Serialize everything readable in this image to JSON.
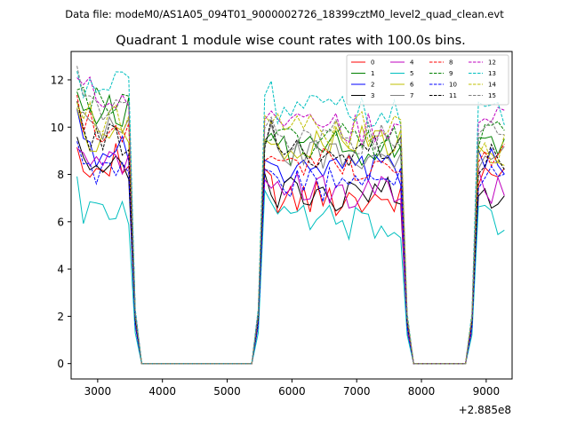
{
  "figure": {
    "suptitle": "Data file: modeM0/AS1A05_094T01_9000002726_18399cztM0_level2_quad_clean.evt"
  },
  "chart_data": {
    "type": "line",
    "title": "Quadrant 1 module wise count rates with 100.0s bins.",
    "xlabel": "",
    "ylabel": "",
    "x_offset_label": "+2.885e8",
    "xlim": [
      2590,
      9400
    ],
    "ylim": [
      -0.65,
      13.2
    ],
    "x_ticks": [
      3000,
      4000,
      5000,
      6000,
      7000,
      8000,
      9000
    ],
    "x_tick_labels": [
      "3000",
      "4000",
      "5000",
      "6000",
      "7000",
      "8000",
      "9000"
    ],
    "y_ticks": [
      0,
      2,
      4,
      6,
      8,
      10,
      12
    ],
    "y_tick_labels": [
      "0",
      "2",
      "4",
      "6",
      "8",
      "10",
      "12"
    ],
    "grid": false,
    "legend_position": "top-right",
    "legend_columns": 4,
    "segments": [
      {
        "start": 2680,
        "bins": 9
      },
      {
        "start": 5580,
        "bins": 22
      },
      {
        "start": 8880,
        "bins": 5
      }
    ],
    "series": [
      {
        "name": "0",
        "color": "#ff0000",
        "dash": "solid",
        "levels": [
          8.6,
          7.0,
          8.2
        ]
      },
      {
        "name": "1",
        "color": "#008000",
        "dash": "solid",
        "levels": [
          10.7,
          9.1,
          9.5
        ]
      },
      {
        "name": "2",
        "color": "#0000ff",
        "dash": "solid",
        "levels": [
          9.0,
          8.1,
          8.4
        ]
      },
      {
        "name": "3",
        "color": "#000000",
        "dash": "solid",
        "levels": [
          8.2,
          7.2,
          7.2
        ]
      },
      {
        "name": "4",
        "color": "#bf00bf",
        "dash": "solid",
        "levels": [
          8.3,
          7.3,
          7.5
        ]
      },
      {
        "name": "5",
        "color": "#00bfbf",
        "dash": "solid",
        "levels": [
          6.5,
          6.0,
          6.0
        ]
      },
      {
        "name": "6",
        "color": "#bfbf00",
        "dash": "solid",
        "levels": [
          9.6,
          9.3,
          8.9
        ]
      },
      {
        "name": "7",
        "color": "#808080",
        "dash": "solid",
        "levels": [
          9.9,
          8.9,
          8.8
        ]
      },
      {
        "name": "8",
        "color": "#ff0000",
        "dash": "dashed",
        "levels": [
          10.1,
          8.4,
          8.8
        ]
      },
      {
        "name": "9",
        "color": "#008000",
        "dash": "dashed",
        "levels": [
          11.0,
          9.4,
          9.8
        ]
      },
      {
        "name": "10",
        "color": "#0000ff",
        "dash": "dashed",
        "levels": [
          8.3,
          7.6,
          7.9
        ]
      },
      {
        "name": "11",
        "color": "#000000",
        "dash": "dashed",
        "levels": [
          9.5,
          9.0,
          8.7
        ]
      },
      {
        "name": "12",
        "color": "#bf00bf",
        "dash": "dashed",
        "levels": [
          11.4,
          9.9,
          10.2
        ]
      },
      {
        "name": "13",
        "color": "#00bfbf",
        "dash": "dashed",
        "levels": [
          11.6,
          10.7,
          10.7
        ]
      },
      {
        "name": "14",
        "color": "#bfbf00",
        "dash": "dashed",
        "levels": [
          10.4,
          9.9,
          9.2
        ]
      },
      {
        "name": "15",
        "color": "#808080",
        "dash": "dashed",
        "levels": [
          10.7,
          9.6,
          9.6
        ]
      }
    ]
  }
}
